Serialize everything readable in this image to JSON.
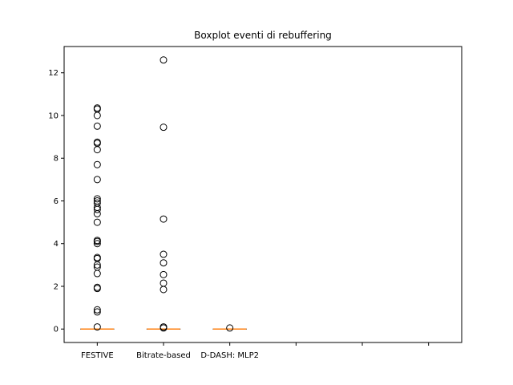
{
  "chart_data": {
    "type": "boxplot",
    "title": "Boxplot eventi di rebuffering",
    "xlabel": "",
    "ylabel": "",
    "categories": [
      "FESTIVE",
      "Bitrate-based",
      "D-DASH: MLP2",
      "",
      "",
      ""
    ],
    "ylim": [
      -0.63,
      13.23
    ],
    "yticks": [
      0,
      2,
      4,
      6,
      8,
      10,
      12
    ],
    "grid": false,
    "series": [
      {
        "category": "FESTIVE",
        "median": 0,
        "q1": 0,
        "q3": 0,
        "whisker_low": 0,
        "whisker_high": 0,
        "outliers": [
          0.1,
          0.8,
          0.9,
          1.9,
          1.95,
          2.6,
          2.9,
          3.0,
          3.3,
          3.35,
          4.0,
          4.1,
          4.15,
          5.0,
          5.4,
          5.6,
          5.7,
          5.9,
          6.0,
          6.1,
          7.0,
          7.7,
          8.4,
          8.7,
          8.75,
          9.5,
          10.0,
          10.3,
          10.35
        ]
      },
      {
        "category": "Bitrate-based",
        "median": 0,
        "q1": 0,
        "q3": 0,
        "whisker_low": 0,
        "whisker_high": 0,
        "outliers": [
          0.05,
          0.1,
          1.85,
          2.15,
          2.55,
          3.1,
          3.5,
          5.15,
          9.45,
          12.6
        ]
      },
      {
        "category": "D-DASH: MLP2",
        "median": 0,
        "q1": 0,
        "q3": 0,
        "whisker_low": 0,
        "whisker_high": 0,
        "outliers": [
          0.05
        ]
      }
    ],
    "colors": {
      "median": "#ff7f0e",
      "outlier_edge": "#000000",
      "axes": "#000000"
    }
  }
}
